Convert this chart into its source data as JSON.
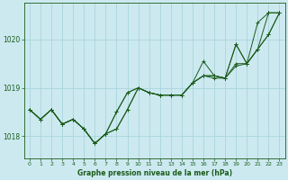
{
  "title": "Graphe pression niveau de la mer (hPa)",
  "background_color": "#cce9f0",
  "grid_color": "#aad4dc",
  "line_color": "#1a5c1a",
  "tick_label_color": "#1a5c1a",
  "xlabel_color": "#1a5c1a",
  "ylim": [
    1017.55,
    1020.75
  ],
  "yticks": [
    1018,
    1019,
    1020
  ],
  "xlim": [
    -0.5,
    23.5
  ],
  "xticks": [
    0,
    1,
    2,
    3,
    4,
    5,
    6,
    7,
    8,
    9,
    10,
    11,
    12,
    13,
    14,
    15,
    16,
    17,
    18,
    19,
    20,
    21,
    22,
    23
  ],
  "series": [
    [
      1018.55,
      1018.35,
      1018.55,
      1018.25,
      1018.35,
      1018.15,
      1017.85,
      1018.05,
      1018.15,
      1018.55,
      1019.0,
      1018.9,
      1018.85,
      1018.85,
      1018.85,
      1019.1,
      1019.25,
      1019.2,
      1019.2,
      1019.45,
      1019.5,
      1019.8,
      1020.1,
      1020.55
    ],
    [
      1018.55,
      1018.35,
      1018.55,
      1018.25,
      1018.35,
      1018.15,
      1017.85,
      1018.05,
      1018.5,
      1018.9,
      1019.0,
      1018.9,
      1018.85,
      1018.85,
      1018.85,
      1019.1,
      1019.55,
      1019.25,
      1019.2,
      1019.5,
      1019.5,
      1019.8,
      1020.1,
      1020.55
    ],
    [
      1018.55,
      1018.35,
      1018.55,
      1018.25,
      1018.35,
      1018.15,
      1017.85,
      1018.05,
      1018.5,
      1018.9,
      1019.0,
      1018.9,
      1018.85,
      1018.85,
      1018.85,
      1019.1,
      1019.25,
      1019.25,
      1019.2,
      1019.9,
      1019.5,
      1020.35,
      1020.55,
      1020.55
    ],
    [
      1018.55,
      1018.35,
      1018.55,
      1018.25,
      1018.35,
      1018.15,
      1017.85,
      1018.05,
      1018.15,
      1018.55,
      1019.0,
      1018.9,
      1018.85,
      1018.85,
      1018.85,
      1019.1,
      1019.25,
      1019.25,
      1019.2,
      1019.9,
      1019.5,
      1019.8,
      1020.55,
      1020.55
    ]
  ]
}
